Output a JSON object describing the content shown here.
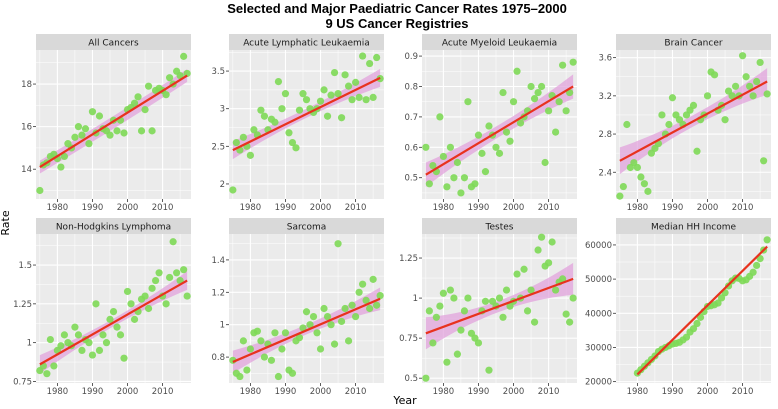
{
  "figure": {
    "title_line1": "Selected and Major Paediatric Cancer Rates 1975–2000",
    "title_line2": "9 US Cancer Registries",
    "xlabel": "Year",
    "ylabel": "Rate",
    "colors": {
      "panel_bg": "#ebebeb",
      "strip_bg": "#d9d9d9",
      "grid": "#ffffff",
      "point": "#7ed957",
      "line": "#e8321e",
      "ribbon": "#e2a3dc"
    }
  },
  "chart_data": [
    {
      "type": "scatter",
      "title": "All Cancers",
      "x_ticks": [
        1980,
        1990,
        2000,
        2010
      ],
      "y_ticks": [
        14,
        16,
        18
      ],
      "xlim": [
        1973.9,
        2018.1
      ],
      "ylim": [
        12.6,
        19.6
      ],
      "x": [
        1975,
        1976,
        1977,
        1978,
        1979,
        1980,
        1981,
        1982,
        1983,
        1984,
        1985,
        1986,
        1987,
        1988,
        1989,
        1990,
        1991,
        1992,
        1993,
        1994,
        1995,
        1996,
        1997,
        1998,
        1999,
        2000,
        2001,
        2002,
        2003,
        2004,
        2005,
        2006,
        2007,
        2008,
        2009,
        2010,
        2011,
        2012,
        2013,
        2014,
        2015,
        2016,
        2017
      ],
      "y": [
        13.0,
        14.2,
        14.3,
        14.6,
        14.7,
        14.5,
        14.1,
        14.6,
        15.2,
        15.0,
        15.5,
        16.0,
        15.6,
        15.9,
        15.2,
        16.7,
        15.7,
        16.5,
        15.9,
        15.8,
        15.6,
        16.3,
        15.8,
        16.3,
        15.7,
        16.8,
        16.9,
        17.1,
        17.4,
        15.8,
        16.8,
        17.9,
        15.8,
        17.7,
        17.8,
        17.7,
        17.5,
        18.3,
        18.0,
        18.6,
        18.4,
        19.3,
        18.5
      ],
      "fit": {
        "x0": 1975,
        "y0": 14.1,
        "x1": 2017,
        "y1": 18.4
      },
      "band": {
        "lo0": 13.8,
        "hi0": 14.4,
        "lom": 15.9,
        "him": 16.5,
        "lo1": 18.1,
        "hi1": 18.7
      }
    },
    {
      "type": "scatter",
      "title": "Acute Lymphatic Leukaemia",
      "x_ticks": [
        1980,
        1990,
        2000,
        2010
      ],
      "y_ticks": [
        2.0,
        2.5,
        3.0,
        3.5
      ],
      "xlim": [
        1973.9,
        2018.1
      ],
      "ylim": [
        1.8,
        3.78
      ],
      "x": [
        1975,
        1976,
        1977,
        1978,
        1979,
        1980,
        1981,
        1982,
        1983,
        1984,
        1985,
        1986,
        1987,
        1988,
        1989,
        1990,
        1991,
        1992,
        1993,
        1994,
        1995,
        1996,
        1997,
        1998,
        1999,
        2000,
        2001,
        2002,
        2003,
        2004,
        2005,
        2006,
        2007,
        2008,
        2009,
        2010,
        2011,
        2012,
        2013,
        2014,
        2015,
        2016,
        2017
      ],
      "y": [
        1.92,
        2.55,
        2.45,
        2.62,
        2.5,
        2.38,
        2.72,
        2.65,
        2.98,
        2.9,
        2.72,
        2.86,
        2.82,
        3.36,
        3.0,
        3.2,
        2.68,
        2.55,
        2.48,
        2.98,
        3.2,
        3.12,
        3.0,
        2.95,
        3.0,
        3.1,
        3.25,
        2.9,
        3.18,
        3.48,
        3.2,
        2.88,
        3.45,
        3.3,
        3.12,
        3.35,
        3.15,
        3.7,
        3.12,
        3.6,
        3.15,
        3.68,
        3.4
      ],
      "fit": {
        "x0": 1975,
        "y0": 2.45,
        "x1": 2017,
        "y1": 3.41
      },
      "band": {
        "lo0": 2.33,
        "hi0": 2.57,
        "lom": 2.88,
        "him": 3.0,
        "lo1": 3.29,
        "hi1": 3.53
      }
    },
    {
      "type": "scatter",
      "title": "Acute Myeloid Leukaemia",
      "x_ticks": [
        1980,
        1990,
        2000,
        2010
      ],
      "y_ticks": [
        0.5,
        0.6,
        0.7,
        0.8,
        0.9
      ],
      "xlim": [
        1973.9,
        2018.1
      ],
      "ylim": [
        0.43,
        0.92
      ],
      "x": [
        1975,
        1976,
        1977,
        1978,
        1979,
        1980,
        1981,
        1982,
        1983,
        1984,
        1985,
        1986,
        1987,
        1988,
        1989,
        1990,
        1991,
        1992,
        1993,
        1994,
        1995,
        1996,
        1997,
        1998,
        1999,
        2000,
        2001,
        2002,
        2003,
        2004,
        2005,
        2006,
        2007,
        2008,
        2009,
        2010,
        2011,
        2012,
        2013,
        2014,
        2015,
        2016,
        2017
      ],
      "y": [
        0.6,
        0.48,
        0.54,
        0.52,
        0.7,
        0.57,
        0.47,
        0.6,
        0.5,
        0.55,
        0.45,
        0.5,
        0.75,
        0.47,
        0.48,
        0.64,
        0.58,
        0.52,
        0.67,
        0.64,
        0.6,
        0.58,
        0.78,
        0.65,
        0.62,
        0.75,
        0.85,
        0.68,
        0.7,
        0.72,
        0.8,
        0.76,
        0.78,
        0.8,
        0.55,
        0.72,
        0.77,
        0.65,
        0.75,
        0.87,
        0.72,
        0.78,
        0.88
      ],
      "fit": {
        "x0": 1975,
        "y0": 0.51,
        "x1": 2017,
        "y1": 0.8
      },
      "band": {
        "lo0": 0.47,
        "hi0": 0.55,
        "lom": 0.635,
        "him": 0.675,
        "lo1": 0.76,
        "hi1": 0.84
      }
    },
    {
      "type": "scatter",
      "title": "Brain Cancer",
      "x_ticks": [
        1980,
        1990,
        2000,
        2010
      ],
      "y_ticks": [
        2.4,
        2.8,
        3.2,
        3.6
      ],
      "xlim": [
        1973.9,
        2018.1
      ],
      "ylim": [
        2.12,
        3.68
      ],
      "x": [
        1975,
        1976,
        1977,
        1978,
        1979,
        1980,
        1981,
        1982,
        1983,
        1984,
        1985,
        1986,
        1987,
        1988,
        1989,
        1990,
        1991,
        1992,
        1993,
        1994,
        1995,
        1996,
        1997,
        1998,
        1999,
        2000,
        2001,
        2002,
        2003,
        2004,
        2005,
        2006,
        2007,
        2008,
        2009,
        2010,
        2011,
        2012,
        2013,
        2014,
        2015,
        2016,
        2017
      ],
      "y": [
        2.15,
        2.25,
        2.9,
        2.45,
        2.5,
        2.45,
        2.35,
        2.28,
        2.2,
        2.6,
        2.65,
        2.7,
        3.0,
        2.8,
        2.9,
        3.18,
        3.0,
        2.95,
        2.9,
        3.0,
        3.05,
        3.1,
        2.62,
        2.95,
        3.0,
        3.2,
        3.45,
        3.42,
        3.05,
        3.1,
        2.95,
        3.25,
        3.2,
        3.3,
        3.2,
        3.62,
        3.4,
        3.3,
        3.2,
        3.35,
        3.55,
        2.52,
        3.22
      ],
      "fit": {
        "x0": 1975,
        "y0": 2.52,
        "x1": 2017,
        "y1": 3.35
      },
      "band": {
        "lo0": 2.38,
        "hi0": 2.66,
        "lom": 2.88,
        "him": 3.0,
        "lo1": 3.21,
        "hi1": 3.49
      }
    },
    {
      "type": "scatter",
      "title": "Non-Hodgkins Lymphoma",
      "x_ticks": [
        1980,
        1990,
        2000,
        2010
      ],
      "y_ticks": [
        0.75,
        1.0,
        1.25,
        1.5
      ],
      "xlim": [
        1973.9,
        2018.1
      ],
      "ylim": [
        0.74,
        1.7
      ],
      "x": [
        1975,
        1976,
        1977,
        1978,
        1979,
        1980,
        1981,
        1982,
        1983,
        1984,
        1985,
        1986,
        1987,
        1988,
        1989,
        1990,
        1991,
        1992,
        1993,
        1994,
        1995,
        1996,
        1997,
        1998,
        1999,
        2000,
        2001,
        2002,
        2003,
        2004,
        2005,
        2006,
        2007,
        2008,
        2009,
        2010,
        2011,
        2012,
        2013,
        2014,
        2015,
        2016,
        2017
      ],
      "y": [
        0.82,
        0.85,
        0.8,
        1.02,
        0.85,
        0.95,
        0.98,
        1.05,
        1.0,
        0.98,
        1.1,
        1.05,
        0.95,
        1.02,
        1.0,
        0.92,
        1.25,
        0.95,
        1.05,
        1.0,
        1.15,
        1.2,
        1.1,
        1.05,
        0.9,
        1.33,
        1.25,
        1.15,
        1.2,
        1.28,
        1.3,
        1.22,
        1.35,
        1.4,
        1.45,
        1.3,
        1.25,
        1.42,
        1.65,
        1.45,
        1.4,
        1.47,
        1.3
      ],
      "fit": {
        "x0": 1975,
        "y0": 0.86,
        "x1": 2017,
        "y1": 1.4
      },
      "band": {
        "lo0": 0.8,
        "hi0": 0.92,
        "lom": 1.105,
        "him": 1.155,
        "lo1": 1.34,
        "hi1": 1.46
      }
    },
    {
      "type": "scatter",
      "title": "Sarcoma",
      "x_ticks": [
        1980,
        1990,
        2000,
        2010
      ],
      "y_ticks": [
        0.8,
        1.0,
        1.2,
        1.4
      ],
      "xlim": [
        1973.9,
        2018.1
      ],
      "ylim": [
        0.64,
        1.56
      ],
      "x": [
        1975,
        1976,
        1977,
        1978,
        1979,
        1980,
        1981,
        1982,
        1983,
        1984,
        1985,
        1986,
        1987,
        1988,
        1989,
        1990,
        1991,
        1992,
        1993,
        1994,
        1995,
        1996,
        1997,
        1998,
        1999,
        2000,
        2001,
        2002,
        2003,
        2004,
        2005,
        2006,
        2007,
        2008,
        2009,
        2010,
        2011,
        2012,
        2013,
        2014,
        2015,
        2016,
        2017
      ],
      "y": [
        0.78,
        0.7,
        0.68,
        0.9,
        0.72,
        0.85,
        0.95,
        0.96,
        0.9,
        0.8,
        0.88,
        0.78,
        0.95,
        0.68,
        0.85,
        0.95,
        0.72,
        0.7,
        0.9,
        0.92,
        0.98,
        1.08,
        1.0,
        1.05,
        0.95,
        0.85,
        1.1,
        1.05,
        1.0,
        0.88,
        1.5,
        1.02,
        1.1,
        0.9,
        1.12,
        1.05,
        1.2,
        1.25,
        1.15,
        1.1,
        1.28,
        1.12,
        1.18
      ],
      "fit": {
        "x0": 1975,
        "y0": 0.77,
        "x1": 2017,
        "y1": 1.16
      },
      "band": {
        "lo0": 0.7,
        "hi0": 0.84,
        "lom": 0.94,
        "him": 1.0,
        "lo1": 1.09,
        "hi1": 1.23
      }
    },
    {
      "type": "scatter",
      "title": "Testes",
      "x_ticks": [
        1980,
        1990,
        2000,
        2010
      ],
      "y_ticks": [
        0.5,
        0.75,
        1.0,
        1.25
      ],
      "xlim": [
        1973.9,
        2018.1
      ],
      "ylim": [
        0.47,
        1.4
      ],
      "x": [
        1975,
        1976,
        1977,
        1978,
        1979,
        1980,
        1981,
        1982,
        1983,
        1984,
        1985,
        1986,
        1987,
        1988,
        1989,
        1990,
        1991,
        1992,
        1993,
        1994,
        1995,
        1996,
        1997,
        1998,
        1999,
        2000,
        2001,
        2002,
        2003,
        2004,
        2005,
        2006,
        2007,
        2008,
        2009,
        2010,
        2011,
        2012,
        2013,
        2014,
        2015,
        2016,
        2017
      ],
      "y": [
        0.5,
        0.92,
        0.72,
        0.88,
        0.95,
        1.03,
        0.6,
        1.05,
        1.0,
        0.65,
        0.8,
        0.92,
        1.0,
        0.78,
        0.75,
        0.72,
        0.92,
        0.98,
        0.55,
        0.98,
        0.95,
        1.0,
        0.88,
        1.05,
        0.95,
        0.98,
        1.15,
        1.0,
        1.18,
        0.92,
        1.05,
        0.85,
        1.3,
        1.38,
        1.2,
        1.22,
        1.35,
        1.05,
        1.1,
        1.12,
        0.9,
        0.85,
        1.0
      ],
      "fit": {
        "x0": 1975,
        "y0": 0.78,
        "x1": 2017,
        "y1": 1.12
      },
      "band": {
        "lo0": 0.68,
        "hi0": 0.88,
        "lom": 0.915,
        "him": 0.985,
        "lo1": 1.02,
        "hi1": 1.22
      }
    },
    {
      "type": "scatter",
      "title": "Median HH Income",
      "x_ticks": [
        1980,
        1990,
        2000,
        2010
      ],
      "y_ticks": [
        20000,
        30000,
        40000,
        50000,
        60000
      ],
      "xlim": [
        1973.9,
        2018.1
      ],
      "ylim": [
        19600,
        63200
      ],
      "x": [
        1980,
        1981,
        1982,
        1983,
        1984,
        1985,
        1986,
        1987,
        1988,
        1989,
        1990,
        1991,
        1992,
        1993,
        1994,
        1995,
        1996,
        1997,
        1998,
        1999,
        2000,
        2001,
        2002,
        2003,
        2004,
        2005,
        2006,
        2007,
        2008,
        2009,
        2010,
        2011,
        2012,
        2013,
        2014,
        2015,
        2016,
        2017
      ],
      "y": [
        22500,
        23500,
        24500,
        25500,
        26500,
        27500,
        28800,
        29500,
        30000,
        30500,
        31000,
        31200,
        31500,
        32200,
        33000,
        34500,
        35500,
        37000,
        38800,
        40500,
        42000,
        42200,
        42500,
        43000,
        44500,
        46000,
        48000,
        49500,
        50300,
        50200,
        49500,
        49800,
        50800,
        52000,
        54000,
        56000,
        58500,
        61500
      ],
      "fit": {
        "x0": 1980,
        "y0": 22100,
        "x1": 2017,
        "y1": 59500
      },
      "band": {
        "lo0": 21600,
        "hi0": 22600,
        "lom": 40600,
        "him": 41000,
        "lo1": 59000,
        "hi1": 60000
      }
    }
  ]
}
